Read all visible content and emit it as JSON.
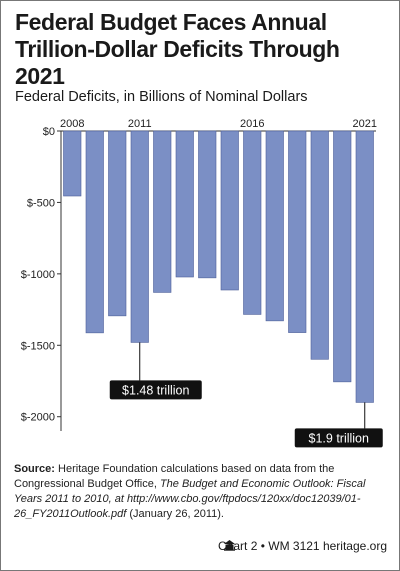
{
  "title_line1": "Federal Budget Faces Annual",
  "title_line2": "Trillion-Dollar Deficits Through 2021",
  "subtitle": "Federal Deficits, in Billions of Nominal Dollars",
  "chart_data": {
    "type": "bar",
    "categories": [
      "2008",
      "2009",
      "2010",
      "2011",
      "2012",
      "2013",
      "2014",
      "2015",
      "2016",
      "2017",
      "2018",
      "2019",
      "2020",
      "2021"
    ],
    "x_tick_labels": [
      "2008",
      "2011",
      "2016",
      "2021"
    ],
    "values": [
      -455,
      -1413,
      -1294,
      -1480,
      -1130,
      -1022,
      -1028,
      -1113,
      -1284,
      -1329,
      -1411,
      -1598,
      -1756,
      -1900
    ],
    "y_ticks": [
      0,
      -500,
      -1000,
      -1500,
      -2000
    ],
    "y_tick_labels": [
      "$0",
      "$-500",
      "$-1000",
      "$-1500",
      "$-2000"
    ],
    "ylim": [
      -2100,
      0
    ],
    "bar_color": "#7b8fc5",
    "bar_edge_color": "#4d5f99",
    "annotations": [
      {
        "category": "2011",
        "text": "$1.48 trillion"
      },
      {
        "category": "2021",
        "text": "$1.9 trillion"
      }
    ],
    "grid": false
  },
  "source": {
    "label": "Source:",
    "text_before": " Heritage Foundation calculations based on data from the Congressional Budget Office, ",
    "italic": "The Budget and Economic Outlook: Fiscal Years 2011 to 2010, at http://www.cbo.gov/ftpdocs/120xx/doc12039/01-26_FY2011Outlook.pdf",
    "text_after": " (January 26, 2011)."
  },
  "footer": {
    "chart_id": "Chart 2 • WM 3121",
    "site": "heritage.org"
  }
}
